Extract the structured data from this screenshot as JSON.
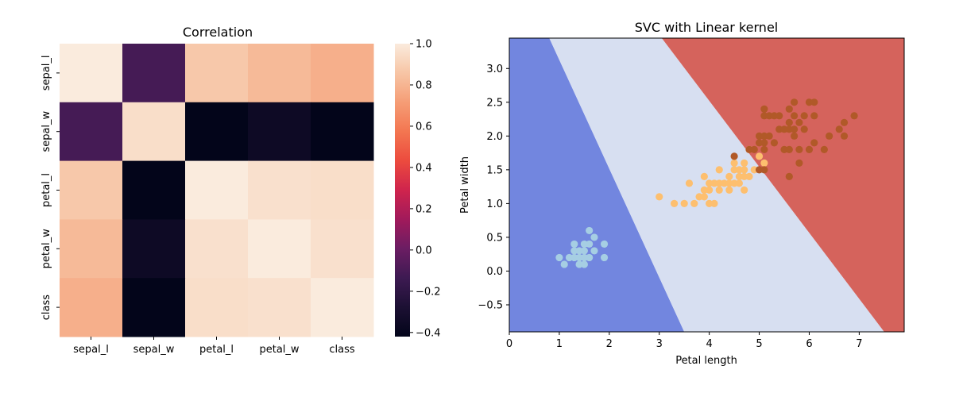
{
  "chart_data": [
    {
      "type": "heatmap",
      "title": "Correlation",
      "labels": [
        "sepal_l",
        "sepal_w",
        "petal_l",
        "petal_w",
        "class"
      ],
      "values": [
        [
          1.0,
          -0.11,
          0.87,
          0.82,
          0.78
        ],
        [
          -0.11,
          0.95,
          -0.42,
          -0.36,
          -0.42
        ],
        [
          0.87,
          -0.42,
          1.0,
          0.96,
          0.95
        ],
        [
          0.82,
          -0.36,
          0.96,
          1.0,
          0.96
        ],
        [
          0.78,
          -0.42,
          0.95,
          0.96,
          1.0
        ]
      ],
      "colorbar": {
        "range": [
          -0.42,
          1.0
        ],
        "ticks": [
          "1.0",
          "0.8",
          "0.6",
          "0.4",
          "0.2",
          "0.0",
          "−0.2",
          "−0.4"
        ],
        "tick_values": [
          1.0,
          0.8,
          0.6,
          0.4,
          0.2,
          0.0,
          -0.2,
          -0.4
        ],
        "colormap": "rocket"
      }
    },
    {
      "type": "scatter",
      "title": "SVC with Linear kernel",
      "xlabel": "Petal length",
      "ylabel": "Petal width",
      "xlim": [
        0,
        7.9
      ],
      "ylim": [
        -0.9,
        3.45
      ],
      "xticks": [
        "0",
        "1",
        "2",
        "3",
        "4",
        "5",
        "6",
        "7"
      ],
      "xtick_values": [
        0,
        1,
        2,
        3,
        4,
        5,
        6,
        7
      ],
      "yticks": [
        "−0.5",
        "0.0",
        "0.5",
        "1.0",
        "1.5",
        "2.0",
        "2.5",
        "3.0"
      ],
      "ytick_values": [
        -0.5,
        0.0,
        0.5,
        1.0,
        1.5,
        2.0,
        2.5,
        3.0
      ],
      "grid": false,
      "decision_regions": {
        "colors": [
          "#7286df",
          "#d7dff1",
          "#d5635c"
        ],
        "boundary_1": [
          [
            0.8,
            3.45
          ],
          [
            3.5,
            -0.9
          ]
        ],
        "boundary_2": [
          [
            3.05,
            3.45
          ],
          [
            7.5,
            -0.9
          ]
        ]
      },
      "series": [
        {
          "color": "#a6cee3",
          "points": [
            [
              1.0,
              0.2
            ],
            [
              1.1,
              0.1
            ],
            [
              1.2,
              0.2
            ],
            [
              1.3,
              0.2
            ],
            [
              1.3,
              0.3
            ],
            [
              1.3,
              0.4
            ],
            [
              1.4,
              0.1
            ],
            [
              1.4,
              0.2
            ],
            [
              1.4,
              0.3
            ],
            [
              1.5,
              0.1
            ],
            [
              1.5,
              0.2
            ],
            [
              1.5,
              0.3
            ],
            [
              1.5,
              0.4
            ],
            [
              1.6,
              0.2
            ],
            [
              1.6,
              0.4
            ],
            [
              1.6,
              0.6
            ],
            [
              1.7,
              0.3
            ],
            [
              1.7,
              0.5
            ],
            [
              1.9,
              0.2
            ],
            [
              1.9,
              0.4
            ]
          ]
        },
        {
          "color": "#fdbf6f",
          "points": [
            [
              3.0,
              1.1
            ],
            [
              3.3,
              1.0
            ],
            [
              3.5,
              1.0
            ],
            [
              3.6,
              1.3
            ],
            [
              3.7,
              1.0
            ],
            [
              3.8,
              1.1
            ],
            [
              3.9,
              1.1
            ],
            [
              3.9,
              1.2
            ],
            [
              3.9,
              1.4
            ],
            [
              4.0,
              1.0
            ],
            [
              4.0,
              1.2
            ],
            [
              4.0,
              1.3
            ],
            [
              4.1,
              1.0
            ],
            [
              4.1,
              1.3
            ],
            [
              4.2,
              1.2
            ],
            [
              4.2,
              1.3
            ],
            [
              4.2,
              1.5
            ],
            [
              4.3,
              1.3
            ],
            [
              4.4,
              1.2
            ],
            [
              4.4,
              1.3
            ],
            [
              4.4,
              1.4
            ],
            [
              4.5,
              1.3
            ],
            [
              4.5,
              1.5
            ],
            [
              4.6,
              1.3
            ],
            [
              4.6,
              1.4
            ],
            [
              4.6,
              1.5
            ],
            [
              4.7,
              1.2
            ],
            [
              4.7,
              1.4
            ],
            [
              4.7,
              1.5
            ],
            [
              4.8,
              1.4
            ],
            [
              4.8,
              1.8
            ],
            [
              4.9,
              1.5
            ],
            [
              5.0,
              1.7
            ],
            [
              5.1,
              1.6
            ],
            [
              4.5,
              1.6
            ],
            [
              4.7,
              1.6
            ]
          ]
        },
        {
          "color": "#b15928",
          "points": [
            [
              4.5,
              1.7
            ],
            [
              4.8,
              1.8
            ],
            [
              4.9,
              1.8
            ],
            [
              5.0,
              1.5
            ],
            [
              5.0,
              1.9
            ],
            [
              5.0,
              2.0
            ],
            [
              5.1,
              1.5
            ],
            [
              5.1,
              1.8
            ],
            [
              5.1,
              1.9
            ],
            [
              5.1,
              2.0
            ],
            [
              5.1,
              2.3
            ],
            [
              5.1,
              2.4
            ],
            [
              5.2,
              2.0
            ],
            [
              5.2,
              2.3
            ],
            [
              5.3,
              1.9
            ],
            [
              5.3,
              2.3
            ],
            [
              5.4,
              2.1
            ],
            [
              5.4,
              2.3
            ],
            [
              5.5,
              1.8
            ],
            [
              5.5,
              2.1
            ],
            [
              5.6,
              1.4
            ],
            [
              5.6,
              1.8
            ],
            [
              5.6,
              2.1
            ],
            [
              5.6,
              2.2
            ],
            [
              5.6,
              2.4
            ],
            [
              5.7,
              2.1
            ],
            [
              5.7,
              2.3
            ],
            [
              5.7,
              2.5
            ],
            [
              5.8,
              1.6
            ],
            [
              5.8,
              1.8
            ],
            [
              5.8,
              2.2
            ],
            [
              5.9,
              2.1
            ],
            [
              5.9,
              2.3
            ],
            [
              6.0,
              1.8
            ],
            [
              6.0,
              2.5
            ],
            [
              6.1,
              1.9
            ],
            [
              6.1,
              2.3
            ],
            [
              6.1,
              2.5
            ],
            [
              6.3,
              1.8
            ],
            [
              6.4,
              2.0
            ],
            [
              6.6,
              2.1
            ],
            [
              6.7,
              2.0
            ],
            [
              6.7,
              2.2
            ],
            [
              6.9,
              2.3
            ],
            [
              5.7,
              2.0
            ]
          ]
        }
      ]
    }
  ]
}
